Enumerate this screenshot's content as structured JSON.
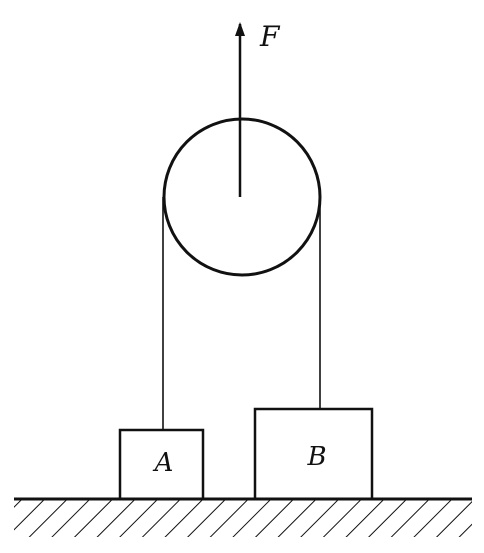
{
  "diagram": {
    "force_label": "F",
    "block_a_label": "A",
    "block_b_label": "B"
  },
  "colors": {
    "ink": "#111111",
    "background": "#ffffff"
  }
}
